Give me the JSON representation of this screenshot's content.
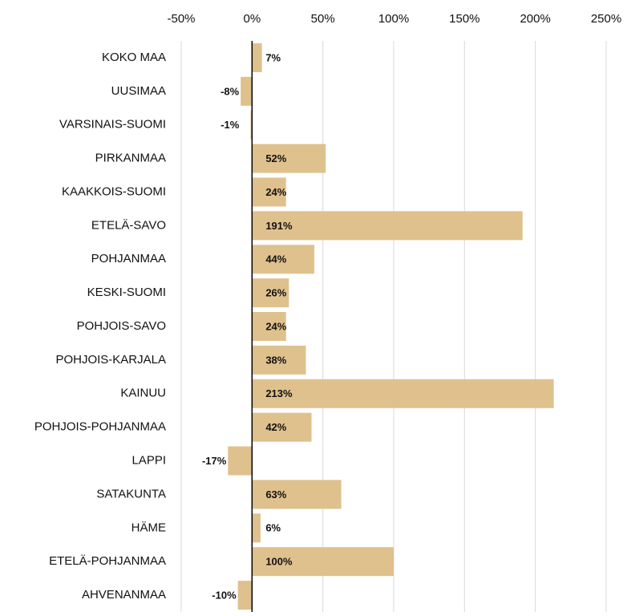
{
  "chart_data": {
    "type": "bar",
    "orientation": "horizontal",
    "categories": [
      "KOKO MAA",
      "UUSIMAA",
      "VARSINAIS-SUOMI",
      "PIRKANMAA",
      "KAAKKOIS-SUOMI",
      "ETELÄ-SAVO",
      "POHJANMAA",
      "KESKI-SUOMI",
      "POHJOIS-SAVO",
      "POHJOIS-KARJALA",
      "KAINUU",
      "POHJOIS-POHJANMAA",
      "LAPPI",
      "SATAKUNTA",
      "HÄME",
      "ETELÄ-POHJANMAA",
      "AHVENANMAA"
    ],
    "values": [
      7,
      -8,
      -1,
      52,
      24,
      191,
      44,
      26,
      24,
      38,
      213,
      42,
      -17,
      63,
      6,
      100,
      -10
    ],
    "value_labels": [
      "7%",
      "-8%",
      "-1%",
      "52%",
      "24%",
      "191%",
      "44%",
      "26%",
      "24%",
      "38%",
      "213%",
      "42%",
      "-17%",
      "63%",
      "6%",
      "100%",
      "-10%"
    ],
    "color": "#dfc18e",
    "xlim": [
      -50,
      250
    ],
    "xticks": [
      {
        "value": -50,
        "label": "-50%"
      },
      {
        "value": 0,
        "label": "0%"
      },
      {
        "value": 50,
        "label": "50%"
      },
      {
        "value": 100,
        "label": "100%"
      },
      {
        "value": 150,
        "label": "150%"
      },
      {
        "value": 200,
        "label": "200%"
      },
      {
        "value": 250,
        "label": "250%"
      }
    ],
    "grid": true
  }
}
